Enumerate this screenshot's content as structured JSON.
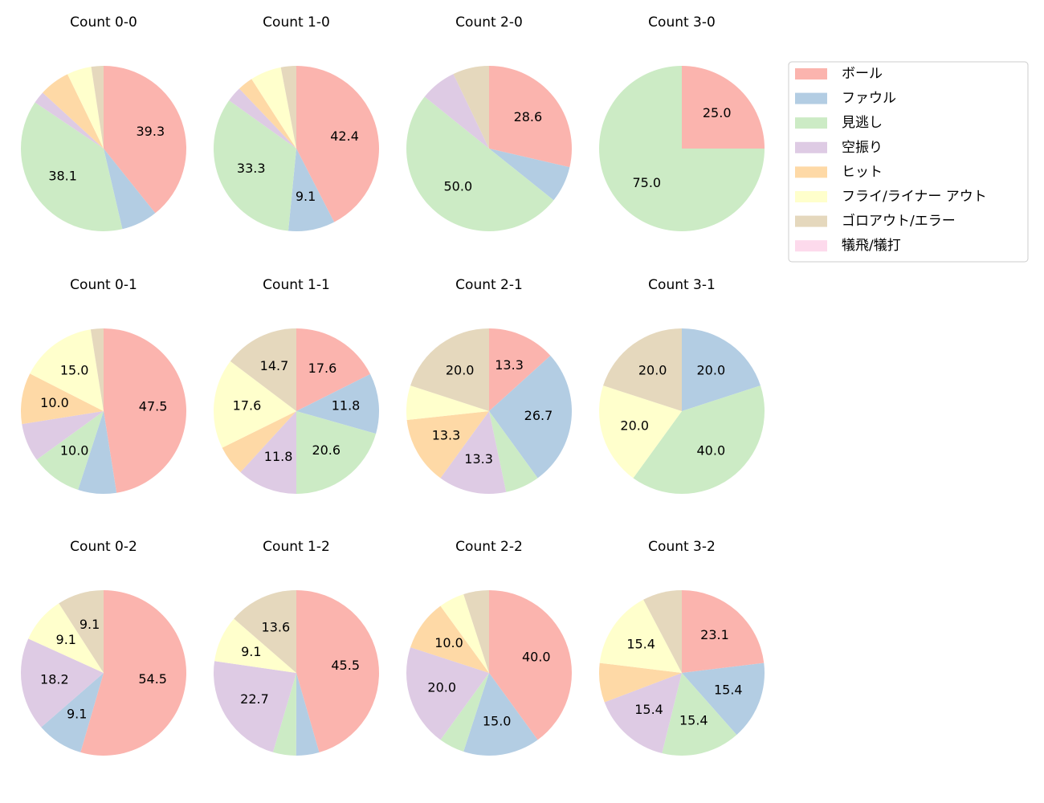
{
  "chart_data": [
    {
      "type": "pie",
      "title": "Count 0-0",
      "categories": [
        "ボール",
        "ファウル",
        "見逃し",
        "空振り",
        "ヒット",
        "フライ/ライナー アウト",
        "ゴロアウト/エラー",
        "犠飛/犠打"
      ],
      "values": [
        39.3,
        7.1,
        38.1,
        2.4,
        6.0,
        4.8,
        2.4,
        0
      ],
      "value_labels": [
        "39.3",
        null,
        "38.1",
        null,
        null,
        null,
        null,
        null
      ],
      "colors": [
        "#fbb4ae",
        "#b3cde3",
        "#ccebc5",
        "#decbe4",
        "#fed9a6",
        "#ffffcc",
        "#e5d8bd",
        "#fddaec"
      ]
    },
    {
      "type": "pie",
      "title": "Count 1-0",
      "categories": [
        "ボール",
        "ファウル",
        "見逃し",
        "空振り",
        "ヒット",
        "フライ/ライナー アウト",
        "ゴロアウト/エラー",
        "犠飛/犠打"
      ],
      "values": [
        42.4,
        9.1,
        33.3,
        3.0,
        3.0,
        6.1,
        3.0,
        0
      ],
      "value_labels": [
        "42.4",
        "9.1",
        "33.3",
        null,
        null,
        null,
        null,
        null
      ],
      "colors": [
        "#fbb4ae",
        "#b3cde3",
        "#ccebc5",
        "#decbe4",
        "#fed9a6",
        "#ffffcc",
        "#e5d8bd",
        "#fddaec"
      ]
    },
    {
      "type": "pie",
      "title": "Count 2-0",
      "categories": [
        "ボール",
        "ファウル",
        "見逃し",
        "空振り",
        "ヒット",
        "フライ/ライナー アウト",
        "ゴロアウト/エラー",
        "犠飛/犠打"
      ],
      "values": [
        28.6,
        7.1,
        50.0,
        7.1,
        0,
        0,
        7.1,
        0
      ],
      "value_labels": [
        "28.6",
        null,
        "50.0",
        null,
        null,
        null,
        null,
        null
      ],
      "colors": [
        "#fbb4ae",
        "#b3cde3",
        "#ccebc5",
        "#decbe4",
        "#fed9a6",
        "#ffffcc",
        "#e5d8bd",
        "#fddaec"
      ]
    },
    {
      "type": "pie",
      "title": "Count 3-0",
      "categories": [
        "ボール",
        "ファウル",
        "見逃し",
        "空振り",
        "ヒット",
        "フライ/ライナー アウト",
        "ゴロアウト/エラー",
        "犠飛/犠打"
      ],
      "values": [
        25.0,
        0,
        75.0,
        0,
        0,
        0,
        0,
        0
      ],
      "value_labels": [
        "25.0",
        null,
        "75.0",
        null,
        null,
        null,
        null,
        null
      ],
      "colors": [
        "#fbb4ae",
        "#b3cde3",
        "#ccebc5",
        "#decbe4",
        "#fed9a6",
        "#ffffcc",
        "#e5d8bd",
        "#fddaec"
      ]
    },
    {
      "type": "pie",
      "title": "Count 0-1",
      "categories": [
        "ボール",
        "ファウル",
        "見逃し",
        "空振り",
        "ヒット",
        "フライ/ライナー アウト",
        "ゴロアウト/エラー",
        "犠飛/犠打"
      ],
      "values": [
        47.5,
        7.5,
        10.0,
        7.5,
        10.0,
        15.0,
        2.5,
        0
      ],
      "value_labels": [
        "47.5",
        null,
        "10.0",
        null,
        "10.0",
        "15.0",
        null,
        null
      ],
      "colors": [
        "#fbb4ae",
        "#b3cde3",
        "#ccebc5",
        "#decbe4",
        "#fed9a6",
        "#ffffcc",
        "#e5d8bd",
        "#fddaec"
      ]
    },
    {
      "type": "pie",
      "title": "Count 1-1",
      "categories": [
        "ボール",
        "ファウル",
        "見逃し",
        "空振り",
        "ヒット",
        "フライ/ライナー アウト",
        "ゴロアウト/エラー",
        "犠飛/犠打"
      ],
      "values": [
        17.6,
        11.8,
        20.6,
        11.8,
        5.9,
        17.6,
        14.7,
        0
      ],
      "value_labels": [
        "17.6",
        "11.8",
        "20.6",
        "11.8",
        null,
        "17.6",
        "14.7",
        null
      ],
      "colors": [
        "#fbb4ae",
        "#b3cde3",
        "#ccebc5",
        "#decbe4",
        "#fed9a6",
        "#ffffcc",
        "#e5d8bd",
        "#fddaec"
      ]
    },
    {
      "type": "pie",
      "title": "Count 2-1",
      "categories": [
        "ボール",
        "ファウル",
        "見逃し",
        "空振り",
        "ヒット",
        "フライ/ライナー アウト",
        "ゴロアウト/エラー",
        "犠飛/犠打"
      ],
      "values": [
        13.3,
        26.7,
        6.7,
        13.3,
        13.3,
        6.7,
        20.0,
        0
      ],
      "value_labels": [
        "13.3",
        "26.7",
        null,
        "13.3",
        "13.3",
        null,
        "20.0",
        null
      ],
      "colors": [
        "#fbb4ae",
        "#b3cde3",
        "#ccebc5",
        "#decbe4",
        "#fed9a6",
        "#ffffcc",
        "#e5d8bd",
        "#fddaec"
      ]
    },
    {
      "type": "pie",
      "title": "Count 3-1",
      "categories": [
        "ボール",
        "ファウル",
        "見逃し",
        "空振り",
        "ヒット",
        "フライ/ライナー アウト",
        "ゴロアウト/エラー",
        "犠飛/犠打"
      ],
      "values": [
        0,
        20.0,
        40.0,
        0,
        0,
        20.0,
        20.0,
        0
      ],
      "value_labels": [
        null,
        "20.0",
        "40.0",
        null,
        null,
        "20.0",
        "20.0",
        null
      ],
      "colors": [
        "#fbb4ae",
        "#b3cde3",
        "#ccebc5",
        "#decbe4",
        "#fed9a6",
        "#ffffcc",
        "#e5d8bd",
        "#fddaec"
      ]
    },
    {
      "type": "pie",
      "title": "Count 0-2",
      "categories": [
        "ボール",
        "ファウル",
        "見逃し",
        "空振り",
        "ヒット",
        "フライ/ライナー アウト",
        "ゴロアウト/エラー",
        "犠飛/犠打"
      ],
      "values": [
        54.5,
        9.1,
        0,
        18.2,
        0,
        9.1,
        9.1,
        0
      ],
      "value_labels": [
        "54.5",
        "9.1",
        null,
        "18.2",
        null,
        "9.1",
        "9.1",
        null
      ],
      "colors": [
        "#fbb4ae",
        "#b3cde3",
        "#ccebc5",
        "#decbe4",
        "#fed9a6",
        "#ffffcc",
        "#e5d8bd",
        "#fddaec"
      ]
    },
    {
      "type": "pie",
      "title": "Count 1-2",
      "categories": [
        "ボール",
        "ファウル",
        "見逃し",
        "空振り",
        "ヒット",
        "フライ/ライナー アウト",
        "ゴロアウト/エラー",
        "犠飛/犠打"
      ],
      "values": [
        45.5,
        4.5,
        4.5,
        22.7,
        0,
        9.1,
        13.6,
        0
      ],
      "value_labels": [
        "45.5",
        null,
        null,
        "22.7",
        null,
        "9.1",
        "13.6",
        null
      ],
      "colors": [
        "#fbb4ae",
        "#b3cde3",
        "#ccebc5",
        "#decbe4",
        "#fed9a6",
        "#ffffcc",
        "#e5d8bd",
        "#fddaec"
      ]
    },
    {
      "type": "pie",
      "title": "Count 2-2",
      "categories": [
        "ボール",
        "ファウル",
        "見逃し",
        "空振り",
        "ヒット",
        "フライ/ライナー アウト",
        "ゴロアウト/エラー",
        "犠飛/犠打"
      ],
      "values": [
        40.0,
        15.0,
        5.0,
        20.0,
        10.0,
        5.0,
        5.0,
        0
      ],
      "value_labels": [
        "40.0",
        "15.0",
        null,
        "20.0",
        "10.0",
        null,
        null,
        null
      ],
      "colors": [
        "#fbb4ae",
        "#b3cde3",
        "#ccebc5",
        "#decbe4",
        "#fed9a6",
        "#ffffcc",
        "#e5d8bd",
        "#fddaec"
      ]
    },
    {
      "type": "pie",
      "title": "Count 3-2",
      "categories": [
        "ボール",
        "ファウル",
        "見逃し",
        "空振り",
        "ヒット",
        "フライ/ライナー アウト",
        "ゴロアウト/エラー",
        "犠飛/犠打"
      ],
      "values": [
        23.1,
        15.4,
        15.4,
        15.4,
        7.7,
        15.4,
        7.7,
        0
      ],
      "value_labels": [
        "23.1",
        "15.4",
        "15.4",
        "15.4",
        null,
        "15.4",
        null,
        null
      ],
      "colors": [
        "#fbb4ae",
        "#b3cde3",
        "#ccebc5",
        "#decbe4",
        "#fed9a6",
        "#ffffcc",
        "#e5d8bd",
        "#fddaec"
      ]
    }
  ]
}
